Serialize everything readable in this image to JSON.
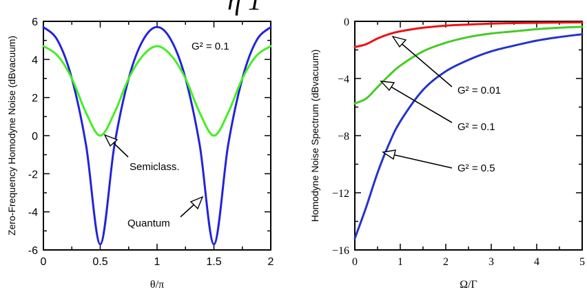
{
  "top_partial_glyphs": "η  1",
  "charts": [
    {
      "id": "left",
      "ylabel": "Zero-Frequency Homodyne Noise (dBvacuum)",
      "xlabel": "θ/π",
      "xlim": [
        0,
        2
      ],
      "ylim": [
        -6,
        6
      ],
      "xticks": [
        "0",
        "0.5",
        "1",
        "1.5",
        "2"
      ],
      "yticks": [
        "6",
        "4",
        "2",
        "0",
        "-2",
        "-4",
        "-6"
      ],
      "annotations": [
        {
          "text": "G² = 0.1"
        },
        {
          "text": "Semiclass."
        },
        {
          "text": "Quantum"
        }
      ]
    },
    {
      "id": "right",
      "ylabel": "Homodyne Noise Spectrum (dBvacuum)",
      "xlabel": "Ω/Γ",
      "xlim": [
        0,
        5
      ],
      "ylim": [
        -16,
        0
      ],
      "xticks": [
        "0",
        "1",
        "2",
        "3",
        "4",
        "5"
      ],
      "yticks": [
        "0",
        "−4",
        "−8",
        "−12",
        "−16"
      ],
      "annotations": [
        {
          "text": "G² = 0.01"
        },
        {
          "text": "G² = 0.1"
        },
        {
          "text": "G² = 0.5"
        }
      ]
    }
  ],
  "chart_data": [
    {
      "type": "line",
      "ylabel": "Zero-Frequency Homodyne Noise (dBvacuum)",
      "xlabel": "θ/π",
      "xlim": [
        0,
        2
      ],
      "ylim": [
        -6,
        6
      ],
      "grid": false,
      "series": [
        {
          "color": "#2222dd",
          "x": [
            0,
            0.125,
            0.25,
            0.375,
            0.5,
            0.625,
            0.75,
            0.875,
            1.0,
            1.125,
            1.25,
            1.375,
            1.5,
            1.625,
            1.75,
            1.875,
            2.0
          ],
          "y": [
            5.7,
            5.0,
            3.0,
            -0.5,
            -5.7,
            -0.5,
            3.0,
            5.0,
            5.7,
            5.0,
            3.0,
            -0.5,
            -5.7,
            -0.5,
            3.0,
            5.0,
            5.7
          ]
        },
        {
          "color": "#44ee22",
          "x": [
            0,
            0.125,
            0.25,
            0.375,
            0.5,
            0.625,
            0.75,
            0.875,
            1.0,
            1.125,
            1.25,
            1.375,
            1.5,
            1.625,
            1.75,
            1.875,
            2.0
          ],
          "y": [
            4.7,
            4.2,
            3.0,
            1.2,
            0.0,
            1.2,
            3.0,
            4.2,
            4.7,
            4.2,
            3.0,
            1.2,
            0.0,
            1.2,
            3.0,
            4.2,
            4.7
          ]
        }
      ]
    },
    {
      "type": "line",
      "ylabel": "Homodyne Noise Spectrum (dBvacuum)",
      "xlabel": "Ω/Γ",
      "xlim": [
        0,
        5
      ],
      "ylim": [
        -16,
        0
      ],
      "grid": false,
      "series": [
        {
          "name": "G² = 0.01",
          "color": "#ee1111",
          "x": [
            0,
            0.25,
            0.5,
            0.75,
            1.0,
            1.5,
            2.0,
            2.5,
            3.0,
            3.5,
            4.0,
            4.5,
            5.0
          ],
          "y": [
            -1.8,
            -1.6,
            -1.2,
            -0.9,
            -0.7,
            -0.45,
            -0.3,
            -0.22,
            -0.16,
            -0.12,
            -0.1,
            -0.08,
            -0.07
          ]
        },
        {
          "name": "G² = 0.1",
          "color": "#44cc22",
          "x": [
            0,
            0.25,
            0.5,
            0.75,
            1.0,
            1.5,
            2.0,
            2.5,
            3.0,
            3.5,
            4.0,
            4.5,
            5.0
          ],
          "y": [
            -5.75,
            -5.4,
            -4.6,
            -3.8,
            -3.1,
            -2.1,
            -1.5,
            -1.1,
            -0.85,
            -0.7,
            -0.55,
            -0.45,
            -0.38
          ]
        },
        {
          "name": "G² = 0.5",
          "color": "#2233cc",
          "x": [
            0,
            0.25,
            0.5,
            0.75,
            1.0,
            1.5,
            2.0,
            2.5,
            3.0,
            3.5,
            4.0,
            4.5,
            5.0
          ],
          "y": [
            -15.2,
            -13.0,
            -10.6,
            -8.6,
            -7.0,
            -4.8,
            -3.5,
            -2.7,
            -2.1,
            -1.7,
            -1.35,
            -1.1,
            -0.9
          ]
        }
      ]
    }
  ]
}
